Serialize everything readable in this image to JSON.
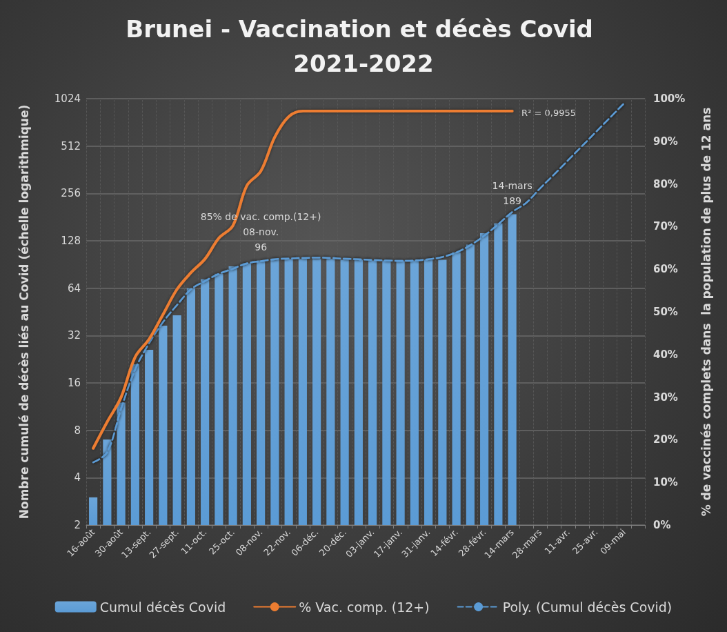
{
  "chart_data": {
    "type": "bar",
    "title": "Brunei - Vaccination et décès Covid 2021-2022",
    "ylabel": "Nombre cumulé de décès liés au Covid (échelle logarithmique)",
    "y2label": "% de vaccinés complets dans  la population de plus de 12 ans",
    "categories": [
      "16-août",
      null,
      "30-août",
      null,
      "13-sept.",
      null,
      "27-sept.",
      null,
      "11-oct.",
      null,
      "25-oct.",
      null,
      "08-nov.",
      null,
      "22-nov.",
      null,
      "06-déc.",
      null,
      "20-déc.",
      null,
      "03-janv.",
      null,
      "17-janv.",
      null,
      "31-janv.",
      null,
      "14-févr.",
      null,
      "28-févr.",
      null,
      "14-mars",
      null,
      "28-mars",
      null,
      "11-avr.",
      null,
      "25-avr.",
      null,
      "09-mai",
      null
    ],
    "series": [
      {
        "name": "Cumul décès Covid",
        "color": "#5b9bd5",
        "values": [
          3,
          7,
          12,
          21,
          26,
          37,
          43,
          64,
          73,
          79,
          88,
          92,
          96,
          97,
          98,
          98,
          98,
          98,
          97,
          97,
          96,
          96,
          96,
          96,
          97,
          97,
          108,
          121,
          143,
          165,
          189,
          null,
          null,
          null,
          null,
          null,
          null,
          null,
          null,
          null
        ]
      },
      {
        "name": "% Vac. comp. (12+)",
        "type": "line",
        "axis": "y2",
        "color": "#ed7d31",
        "line_style": "solid",
        "values": [
          18,
          24.2,
          30,
          39.4,
          43.6,
          49.4,
          55.3,
          59.2,
          62.4,
          67.3,
          70.2,
          79.6,
          83,
          91,
          95.8,
          97.1,
          97.1,
          97.1,
          97.1,
          97.1,
          97.1,
          97.1,
          97.1,
          97.1,
          97.1,
          97.1,
          97.1,
          97.1,
          97.1,
          97.1,
          97.1,
          null,
          null,
          null,
          null,
          null,
          null,
          null,
          null,
          null
        ]
      },
      {
        "name": "Poly. (Cumul décès Covid)",
        "type": "line",
        "color": "#5b9bd5",
        "line_style": "dashed",
        "values": [
          5,
          5.8,
          11,
          19.5,
          28.6,
          39,
          50,
          63,
          71,
          79,
          85,
          92,
          95,
          97.7,
          98.8,
          99.5,
          100,
          99.5,
          98.5,
          97.7,
          96.7,
          96,
          95.5,
          96,
          97.7,
          101,
          108,
          120,
          138,
          163,
          195,
          223,
          276,
          338,
          416,
          512,
          630,
          776,
          955,
          null
        ]
      }
    ],
    "ylim": [
      2,
      1024
    ],
    "yticks": [
      2,
      4,
      8,
      16,
      32,
      64,
      128,
      256,
      512,
      1024
    ],
    "log": "y",
    "y2lim": [
      0,
      100
    ],
    "y2ticks": [
      {
        "value": 0,
        "label": "0%"
      },
      {
        "value": 10,
        "label": "10%"
      },
      {
        "value": 20,
        "label": "20%"
      },
      {
        "value": 30,
        "label": "30%"
      },
      {
        "value": 40,
        "label": "40%"
      },
      {
        "value": 50,
        "label": "50%"
      },
      {
        "value": 60,
        "label": "60%"
      },
      {
        "value": 70,
        "label": "70%"
      },
      {
        "value": 80,
        "label": "80%"
      },
      {
        "value": 90,
        "label": "90%"
      },
      {
        "value": 100,
        "label": "100%"
      }
    ],
    "annotations": [
      "R² = 0,9955",
      {
        "text": "85% de vac. comp.(12+)\n08-nov.\n96",
        "x": "08-nov.",
        "y": 96
      },
      {
        "text": "14-mars\n189",
        "x": "14-mars",
        "y": 189
      }
    ],
    "grid": true,
    "legend": "bottom",
    "marker": "none"
  }
}
